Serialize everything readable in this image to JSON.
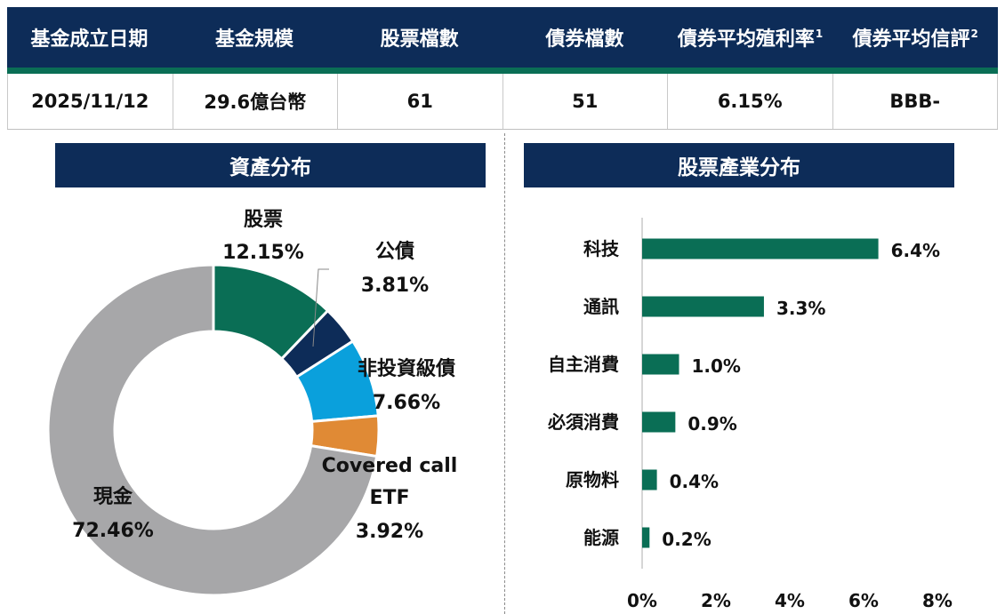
{
  "summary": {
    "headers": [
      {
        "label": "基金成立日期",
        "sup": ""
      },
      {
        "label": "基金規模",
        "sup": ""
      },
      {
        "label": "股票檔數",
        "sup": ""
      },
      {
        "label": "債券檔數",
        "sup": ""
      },
      {
        "label": "債券平均殖利率",
        "sup": "1"
      },
      {
        "label": "債券平均信評",
        "sup": "2"
      }
    ],
    "values": [
      "2025/11/12",
      "29.6億台幣",
      "61",
      "51",
      "6.15%",
      "BBB-"
    ]
  },
  "colors": {
    "navy": "#0d2c58",
    "green": "#0a6e55",
    "stock": "#0a6e55",
    "govbond": "#0d2c58",
    "hy": "#0aa0dc",
    "covered": "#e08a35",
    "cash": "#a7a7a9"
  },
  "chart_data": [
    {
      "type": "pie",
      "title": "資產分布",
      "slices": [
        {
          "name": "股票",
          "value": 12.15,
          "label": "12.15%"
        },
        {
          "name": "公債",
          "value": 3.81,
          "label": "3.81%"
        },
        {
          "name": "非投資級債",
          "value": 7.66,
          "label": "7.66%"
        },
        {
          "name": "Covered call ETF",
          "value": 3.92,
          "label": "3.92%"
        },
        {
          "name": "現金",
          "value": 72.46,
          "label": "72.46%"
        }
      ],
      "donut": true
    },
    {
      "type": "bar",
      "orientation": "horizontal",
      "title": "股票產業分布",
      "categories": [
        "科技",
        "通訊",
        "自主消費",
        "必須消費",
        "原物料",
        "能源"
      ],
      "values": [
        6.4,
        3.3,
        1.0,
        0.9,
        0.4,
        0.2
      ],
      "value_labels": [
        "6.4%",
        "3.3%",
        "1.0%",
        "0.9%",
        "0.4%",
        "0.2%"
      ],
      "xlim": [
        0,
        8
      ],
      "xticks": [
        0,
        2,
        4,
        6,
        8
      ],
      "xtick_labels": [
        "0%",
        "2%",
        "4%",
        "6%",
        "8%"
      ],
      "bar_color": "#0a6e55",
      "grid": false
    }
  ]
}
